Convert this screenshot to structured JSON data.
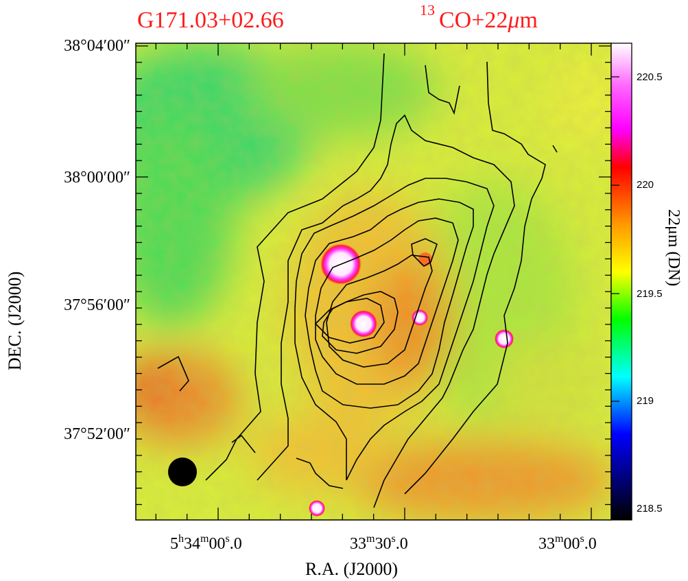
{
  "figure": {
    "title_left": "G171.03+02.66",
    "title_right_sup": "13",
    "title_right": "CO+22",
    "title_right_mu": "μ",
    "title_right_end": "m",
    "xlabel": "R.A. (J2000)",
    "ylabel": "DEC. (J2000)",
    "colorbar_label": "22μm (DN)"
  },
  "x_ticks": [
    {
      "h": "5",
      "hs": "h",
      "m": "34",
      "ms": "m",
      "s": "00",
      "ss": "s",
      "frac": ".0"
    },
    {
      "h": "",
      "hs": "",
      "m": "33",
      "ms": "m",
      "s": "30",
      "ss": "s",
      "frac": ".0"
    },
    {
      "h": "",
      "hs": "",
      "m": "33",
      "ms": "m",
      "s": "00",
      "ss": "s",
      "frac": ".0"
    }
  ],
  "y_ticks": [
    "38°04′00″",
    "38°00′00″",
    "37°56′00″",
    "37°52′00″"
  ],
  "colorbar": {
    "ticks": [
      "220.5",
      "220",
      "219.5",
      "219",
      "218.5"
    ],
    "range": [
      218.45,
      220.65
    ]
  },
  "colors": {
    "title": "#ff1a1a",
    "cmap_top": "#ffffff",
    "cmap_magenta": "#ff00ff",
    "cmap_red": "#ff0000",
    "cmap_yellow": "#ffff00",
    "cmap_green": "#00ff00",
    "cmap_cyan": "#00ffff",
    "cmap_blue": "#0000ff",
    "cmap_bottom": "#000000",
    "contour": "#000000"
  },
  "beam": "filled black circle"
}
